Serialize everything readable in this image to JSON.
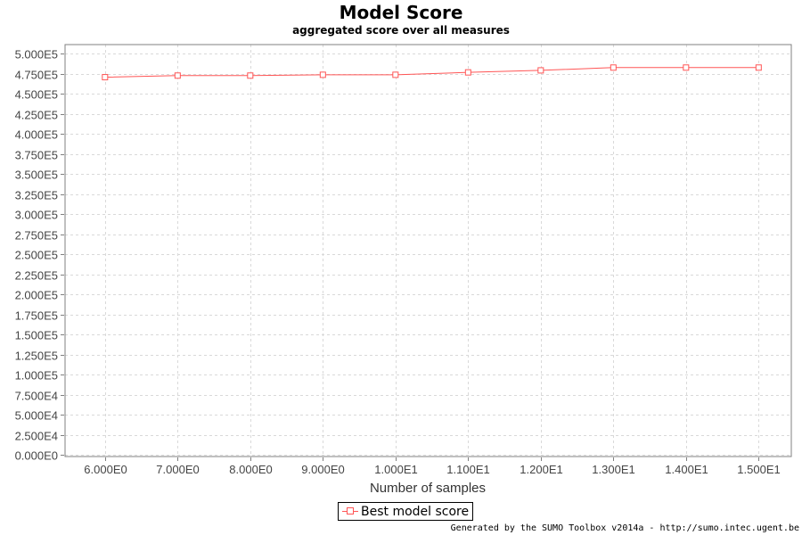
{
  "title": "Model Score",
  "subtitle": "aggregated score over all measures",
  "legend_label": "Best model score",
  "footer": "Generated by the SUMO Toolbox v2014a - http://sumo.intec.ugent.be",
  "colors": {
    "series": "#ff5555",
    "grid": "#d9d9d9",
    "frame": "#808080"
  },
  "chart_data": {
    "type": "line",
    "title": "Model Score",
    "subtitle": "aggregated score over all measures",
    "xlabel": "Number of samples",
    "ylabel": "",
    "x": [
      6,
      7,
      8,
      9,
      10,
      11,
      12,
      13,
      14,
      15
    ],
    "series": [
      {
        "name": "Best model score",
        "values": [
          471000,
          473000,
          473000,
          474000,
          474000,
          477000,
          479500,
          483000,
          483000,
          483000
        ]
      }
    ],
    "xticks": [
      6,
      7,
      8,
      9,
      10,
      11,
      12,
      13,
      14,
      15
    ],
    "xtick_labels": [
      "6.000E0",
      "7.000E0",
      "8.000E0",
      "9.000E0",
      "1.000E1",
      "1.100E1",
      "1.200E1",
      "1.300E1",
      "1.400E1",
      "1.500E1"
    ],
    "yticks": [
      0,
      25000,
      50000,
      75000,
      100000,
      125000,
      150000,
      175000,
      200000,
      225000,
      250000,
      275000,
      300000,
      325000,
      350000,
      375000,
      400000,
      425000,
      450000,
      475000,
      500000
    ],
    "ytick_labels": [
      "0.000E0",
      "2.500E4",
      "5.000E4",
      "7.500E4",
      "1.000E5",
      "1.250E5",
      "1.500E5",
      "1.750E5",
      "2.000E5",
      "2.250E5",
      "2.500E5",
      "2.750E5",
      "3.000E5",
      "3.250E5",
      "3.500E5",
      "3.750E5",
      "4.000E5",
      "4.250E5",
      "4.500E5",
      "4.750E5",
      "5.000E5"
    ],
    "xlim": [
      5.45,
      15.45
    ],
    "ylim": [
      0,
      505000
    ],
    "grid": true,
    "legend": "bottom-center",
    "marker": "square"
  }
}
